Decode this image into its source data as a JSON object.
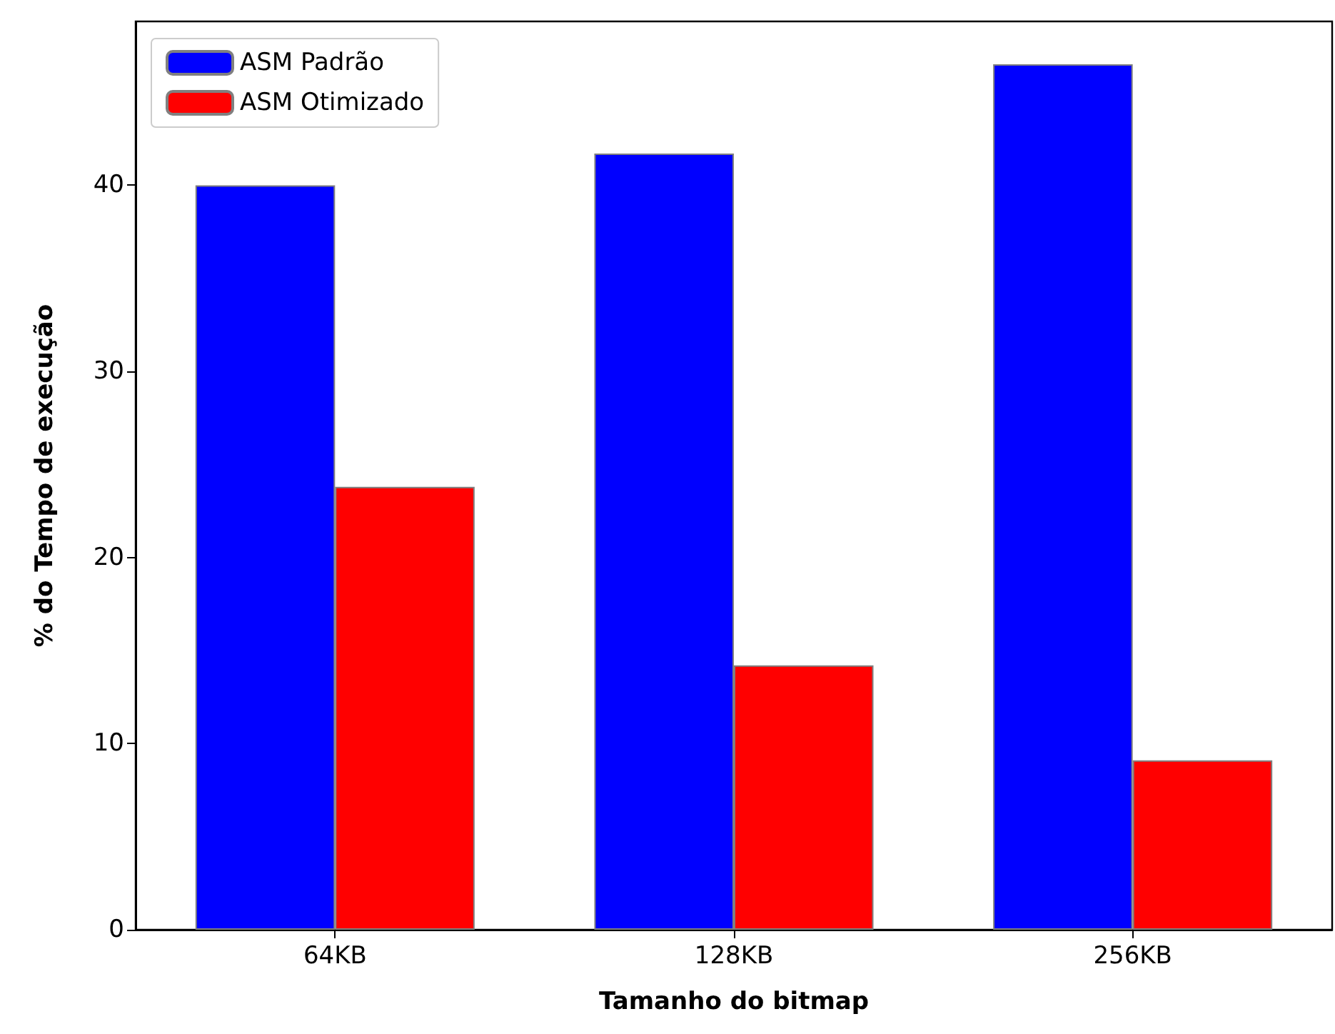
{
  "chart_data": {
    "type": "bar",
    "xlabel": "Tamanho do bitmap",
    "ylabel": "% do Tempo de execução",
    "categories": [
      "64KB",
      "128KB",
      "256KB"
    ],
    "series": [
      {
        "name": "ASM Padrão",
        "color": "#0000ff",
        "values": [
          40.0,
          41.7,
          46.5
        ]
      },
      {
        "name": "ASM Otimizado",
        "color": "#ff0000",
        "values": [
          23.8,
          14.2,
          9.1
        ]
      }
    ],
    "ylim": [
      0,
      48.8
    ],
    "yticks": [
      0,
      10,
      20,
      30,
      40
    ],
    "grid": false,
    "legend": "top left"
  }
}
